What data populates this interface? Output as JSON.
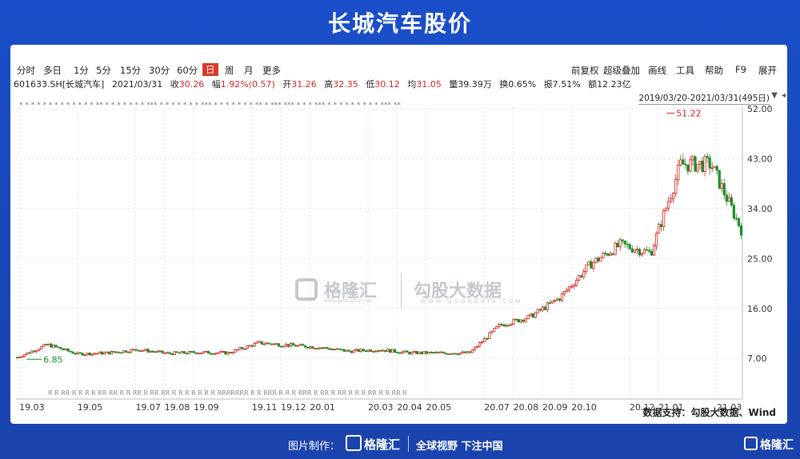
{
  "title": "长城汽车股价",
  "toolbar": {
    "periods": [
      "分时",
      "多日",
      "1分",
      "5分",
      "15分",
      "30分",
      "60分",
      "日",
      "周",
      "月",
      "更多"
    ],
    "active_period": "日",
    "right_items": [
      "前复权",
      "超级叠加",
      "画线",
      "工具",
      "帮助",
      "F9",
      "展开"
    ]
  },
  "info": {
    "code": "601633.SH[长城汽车]",
    "date": "2021/03/31",
    "close_label": "收",
    "close": "30.26",
    "change_label": "幅",
    "change": "1.92%(0.57)",
    "open_label": "开",
    "open": "31.26",
    "high_label": "高",
    "high": "32.35",
    "low_label": "低",
    "low": "30.12",
    "avg_label": "均",
    "avg": "31.05",
    "volume": "量39.39万",
    "turnover": "换0.65%",
    "amplitude": "振7.51%",
    "amount": "额12.23亿"
  },
  "range_label": "2019/03/20-2021/03/31(495日)",
  "source": "数据支持：勾股大数据、Wind",
  "watermark": {
    "left": "格隆汇",
    "left_sub": "www.gelonghui.com",
    "right": "勾股大数据",
    "right_sub": "WWW.GOGUDATA.COM"
  },
  "footer": {
    "credit": "图片制作：",
    "logo": "格隆汇",
    "slogan": "全球视野 下注中国",
    "corner_logo": "格隆汇"
  },
  "colors": {
    "up": "#d7261f",
    "down": "#1e8f2a",
    "bg": "#1a4fc9"
  },
  "chart_data": {
    "type": "candlestick",
    "title": "长城汽车股价",
    "x_ticks": [
      "19.03",
      "19.05",
      "19.07",
      "19.08",
      "19.09",
      "19.11",
      "19.12",
      "20.01",
      "20.03",
      "20.04",
      "20.05",
      "20.07",
      "20.08",
      "20.09",
      "20.10",
      "20.12",
      "21.01",
      "21.03"
    ],
    "y_ticks": [
      "7.00",
      "16.00",
      "25.00",
      "34.00",
      "43.00",
      "52.00"
    ],
    "ylim": [
      3.0,
      52.0
    ],
    "annotations": [
      {
        "label": "51.22",
        "value": 51.22,
        "date": "2021-01",
        "type": "high"
      },
      {
        "label": "6.85",
        "value": 6.85,
        "date": "2019-03",
        "type": "low"
      }
    ],
    "series": [
      {
        "x": [
          "2019-03",
          "2019-04",
          "2019-05",
          "2019-06",
          "2019-07",
          "2019-08",
          "2019-09",
          "2019-10",
          "2019-11",
          "2019-12",
          "2020-01",
          "2020-02",
          "2020-03",
          "2020-04",
          "2020-05",
          "2020-06",
          "2020-07",
          "2020-08",
          "2020-09",
          "2020-10",
          "2020-11",
          "2020-12",
          "2021-01",
          "2021-02",
          "2021-03"
        ],
        "close": [
          7.2,
          9.5,
          7.8,
          8.0,
          8.6,
          7.9,
          8.1,
          8.0,
          9.8,
          9.4,
          9.0,
          8.3,
          8.6,
          8.0,
          8.0,
          8.0,
          13.0,
          14.5,
          18.0,
          24.0,
          27.5,
          26.0,
          42.0,
          42.0,
          30.26
        ]
      }
    ]
  }
}
